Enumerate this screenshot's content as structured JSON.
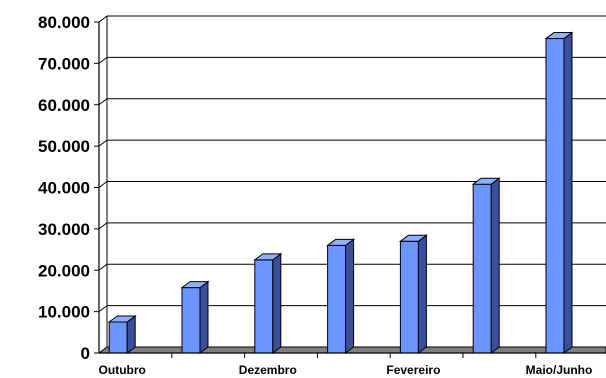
{
  "chart_data": {
    "type": "bar",
    "title": "",
    "xlabel": "",
    "ylabel": "",
    "categories": [
      "Outubro",
      "",
      "Dezembro",
      "",
      "Fevereiro",
      "",
      "Maio/Junho"
    ],
    "values": [
      7500,
      15800,
      22500,
      26000,
      27000,
      40800,
      76000
    ],
    "ylim": [
      0,
      80000
    ],
    "yticks": [
      "0",
      "10.000",
      "20.000",
      "30.000",
      "40.000",
      "50.000",
      "60.000",
      "70.000",
      "80.000"
    ],
    "grid": true,
    "style": "3d-bar",
    "colors": {
      "bar_front": "#6c96ff",
      "bar_side": "#3a4f9e",
      "bar_top": "#8fb0ff",
      "floor": "#808080",
      "grid": "#000000"
    }
  }
}
